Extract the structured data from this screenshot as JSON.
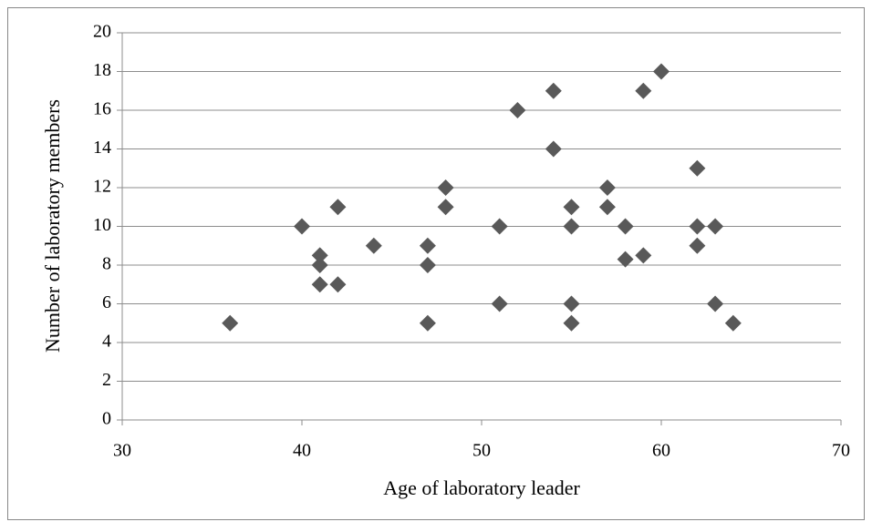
{
  "chart_data": {
    "type": "scatter",
    "x_label": "Age of laboratory leader",
    "y_label": "Number of laboratory members",
    "color": "#595959",
    "grid": true,
    "xlim": [
      30,
      70
    ],
    "xticks": [
      30,
      40,
      50,
      60,
      70
    ],
    "ylim": [
      0,
      20
    ],
    "yticks": [
      0,
      2,
      4,
      6,
      8,
      10,
      12,
      14,
      16,
      18,
      20
    ],
    "x": [
      36,
      40,
      41,
      41,
      41,
      42,
      42,
      44,
      47,
      47,
      47,
      48,
      48,
      51,
      51,
      52,
      54,
      54,
      55,
      55,
      55,
      55,
      57,
      57,
      58,
      58,
      59,
      59,
      60,
      62,
      62,
      62,
      63,
      63,
      64
    ],
    "values": [
      5,
      10,
      8.5,
      8,
      7,
      11,
      7,
      9,
      9,
      8,
      5,
      12,
      11,
      10,
      6,
      16,
      17,
      14,
      11,
      10,
      6,
      5,
      12,
      11,
      10,
      8.3,
      17,
      8.5,
      18,
      13,
      10,
      9,
      10,
      6,
      5
    ]
  }
}
